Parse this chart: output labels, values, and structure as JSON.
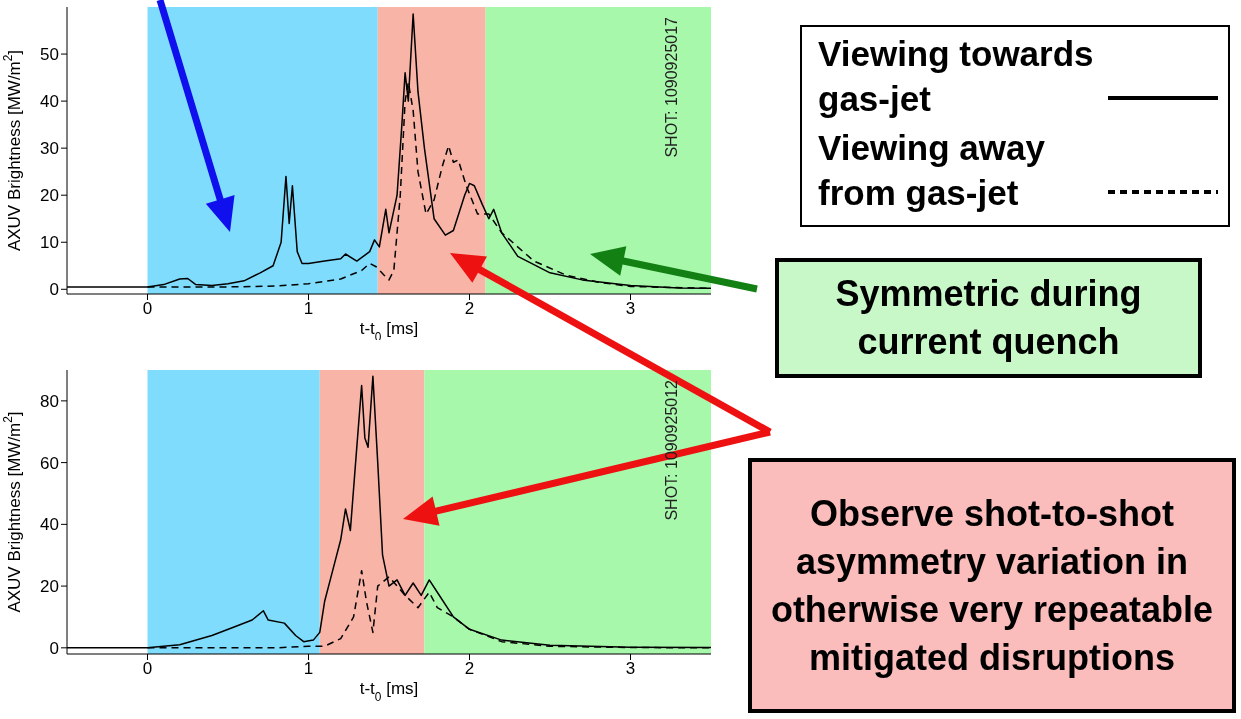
{
  "chart_data": [
    {
      "type": "line",
      "xlabel": "t-t$_{0}$ [ms]",
      "ylabel": "AXUV Brightness [MW/m$^{2}$]",
      "xlim": [
        -0.5,
        3.5
      ],
      "xticks": [
        0,
        1,
        2,
        3
      ],
      "ylim": [
        -1,
        60
      ],
      "yticks": [
        0,
        10,
        20,
        30,
        40,
        50
      ],
      "legend": "right",
      "annotations": [
        "SHOT: 1090925017",
        "Symmetric during current quench"
      ],
      "bands": [
        {
          "axis": "x",
          "from": 0,
          "to": 1.43,
          "color": "#7fdcfc"
        },
        {
          "axis": "x",
          "from": 1.43,
          "to": 2.1,
          "color": "#f8b4a6"
        },
        {
          "axis": "x",
          "from": 2.1,
          "to": 3.5,
          "color": "#a8f8ac"
        }
      ],
      "series": [
        {
          "name": "Viewing towards gas-jet",
          "color": "#000000",
          "line_style": "solid",
          "x": [
            -0.5,
            0,
            0.1,
            0.2,
            0.25,
            0.3,
            0.4,
            0.5,
            0.6,
            0.7,
            0.78,
            0.83,
            0.86,
            0.88,
            0.9,
            0.93,
            0.96,
            1.0,
            1.1,
            1.2,
            1.23,
            1.3,
            1.38,
            1.41,
            1.44,
            1.48,
            1.5,
            1.55,
            1.58,
            1.6,
            1.62,
            1.65,
            1.68,
            1.72,
            1.78,
            1.85,
            1.9,
            1.97,
            2.0,
            2.03,
            2.08,
            2.12,
            2.15,
            2.2,
            2.3,
            2.5,
            2.7,
            3.0,
            3.3,
            3.5
          ],
          "values": [
            0.5,
            0.5,
            1,
            2.2,
            2.3,
            1,
            0.8,
            1.2,
            1.8,
            3.5,
            5,
            10,
            24,
            14,
            22,
            8,
            5.5,
            5.5,
            6,
            6.5,
            7.5,
            6,
            8,
            10.5,
            9,
            17,
            12,
            20,
            35,
            46,
            40,
            58.5,
            42,
            30,
            15,
            11.5,
            12.5,
            20,
            22.5,
            22,
            18,
            15,
            17,
            12,
            7,
            3.5,
            2,
            0.8,
            0.3,
            0.2
          ]
        },
        {
          "name": "Viewing away from gas-jet",
          "color": "#000000",
          "line_style": "dashed",
          "x": [
            0,
            0.5,
            0.8,
            1.0,
            1.2,
            1.33,
            1.38,
            1.42,
            1.47,
            1.5,
            1.53,
            1.57,
            1.6,
            1.62,
            1.65,
            1.68,
            1.73,
            1.78,
            1.83,
            1.87,
            1.9,
            1.93,
            1.98,
            2.05,
            2.12,
            2.2,
            2.4,
            2.6,
            2.8,
            3.0,
            3.5
          ],
          "values": [
            0.5,
            0.5,
            0.7,
            1.2,
            2.2,
            4,
            5.5,
            4.8,
            3,
            2,
            4,
            20,
            40,
            44,
            38,
            25,
            16,
            19,
            26,
            30.5,
            27,
            27.5,
            22,
            16,
            16,
            12,
            6,
            3,
            1.5,
            0.6,
            0.2
          ]
        }
      ]
    },
    {
      "type": "line",
      "xlabel": "t-t$_{0}$ [ms]",
      "ylabel": "AXUV Brightness [MW/m$^{2}$]",
      "xlim": [
        -0.5,
        3.5
      ],
      "xticks": [
        0,
        1,
        2,
        3
      ],
      "ylim": [
        -2,
        90
      ],
      "yticks": [
        0,
        20,
        40,
        60,
        80
      ],
      "annotations": [
        "SHOT: 1090925012",
        "Observe shot-to-shot asymmetry variation in otherwise very repeatable mitigated disruptions"
      ],
      "bands": [
        {
          "axis": "x",
          "from": 0,
          "to": 1.07,
          "color": "#7fdcfc"
        },
        {
          "axis": "x",
          "from": 1.07,
          "to": 1.72,
          "color": "#f8b4a6"
        },
        {
          "axis": "x",
          "from": 1.72,
          "to": 3.5,
          "color": "#a8f8ac"
        }
      ],
      "series": [
        {
          "color": "#000000",
          "line_style": "solid",
          "x": [
            -0.5,
            0,
            0.2,
            0.4,
            0.55,
            0.65,
            0.72,
            0.75,
            0.85,
            0.92,
            0.97,
            1.03,
            1.07,
            1.1,
            1.15,
            1.2,
            1.23,
            1.26,
            1.3,
            1.33,
            1.35,
            1.37,
            1.4,
            1.43,
            1.46,
            1.5,
            1.55,
            1.6,
            1.65,
            1.7,
            1.75,
            1.8,
            1.9,
            2.0,
            2.2,
            2.5,
            3.0,
            3.5
          ],
          "values": [
            0,
            0,
            1,
            4,
            7,
            9,
            12,
            9,
            8,
            4,
            2,
            2.5,
            5,
            15,
            25,
            35,
            45,
            38,
            65,
            85,
            68,
            65,
            88,
            60,
            30,
            20,
            22,
            17,
            21,
            17,
            22,
            18,
            10,
            6,
            2.5,
            0.8,
            0.2,
            0.1
          ]
        },
        {
          "color": "#000000",
          "line_style": "dashed",
          "x": [
            0,
            0.8,
            1.0,
            1.1,
            1.2,
            1.28,
            1.33,
            1.36,
            1.4,
            1.43,
            1.5,
            1.55,
            1.6,
            1.68,
            1.75,
            1.8,
            1.9,
            2.0,
            2.2,
            2.5,
            3.0,
            3.5
          ],
          "values": [
            0,
            0,
            0.5,
            0.5,
            3,
            10,
            25,
            15,
            5,
            20,
            23,
            20,
            17,
            13,
            18,
            13,
            10,
            6,
            2,
            0.5,
            0.1,
            0
          ]
        }
      ]
    }
  ]
}
